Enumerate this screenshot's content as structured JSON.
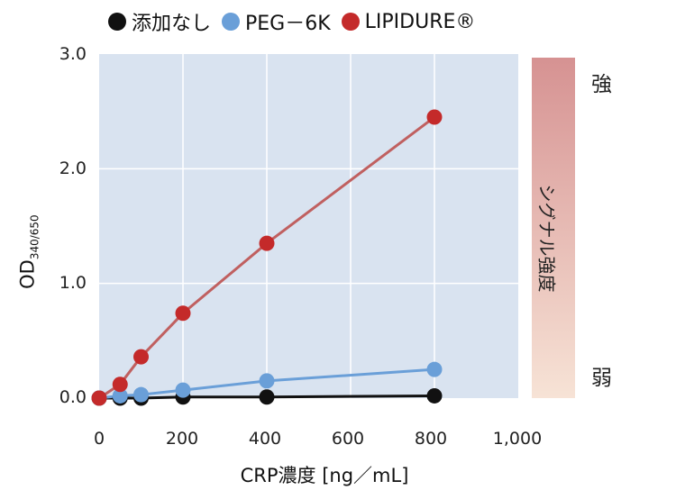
{
  "legend": [
    {
      "label": "添加なし",
      "color": "#111111"
    },
    {
      "label": "PEG－6K",
      "color": "#6a9fd8"
    },
    {
      "label": "LIPIDURE®",
      "color": "#c42a2a"
    }
  ],
  "signal_bar": {
    "label": "シグナル強度",
    "high": "強",
    "low": "弱",
    "color_top": "#d69292",
    "color_bottom": "#f7e3d6"
  },
  "chart_data": {
    "type": "line",
    "xlabel": "CRP濃度 [ng／mL]",
    "ylabel": "OD",
    "ylabel_sub": "340/650",
    "xlim": [
      0,
      1000
    ],
    "ylim": [
      0,
      3.0
    ],
    "x_ticks": [
      "0",
      "200",
      "400",
      "600",
      "800",
      "1,000"
    ],
    "y_ticks": [
      "0.0",
      "1.0",
      "2.0",
      "3.0"
    ],
    "grid": true,
    "background": "#d9e3f0",
    "series": [
      {
        "name": "添加なし",
        "color": "#111111",
        "x": [
          0,
          50,
          100,
          200,
          400,
          800
        ],
        "y": [
          0.0,
          0.0,
          0.0,
          0.01,
          0.01,
          0.02
        ]
      },
      {
        "name": "PEG－6K",
        "color": "#6a9fd8",
        "x": [
          0,
          50,
          100,
          200,
          400,
          800
        ],
        "y": [
          0.0,
          0.02,
          0.03,
          0.07,
          0.15,
          0.25
        ]
      },
      {
        "name": "LIPIDURE®",
        "color": "#c42a2a",
        "line_color": "#c06060",
        "x": [
          0,
          50,
          100,
          200,
          400,
          800
        ],
        "y": [
          0.0,
          0.12,
          0.36,
          0.74,
          1.35,
          2.45
        ]
      }
    ]
  }
}
